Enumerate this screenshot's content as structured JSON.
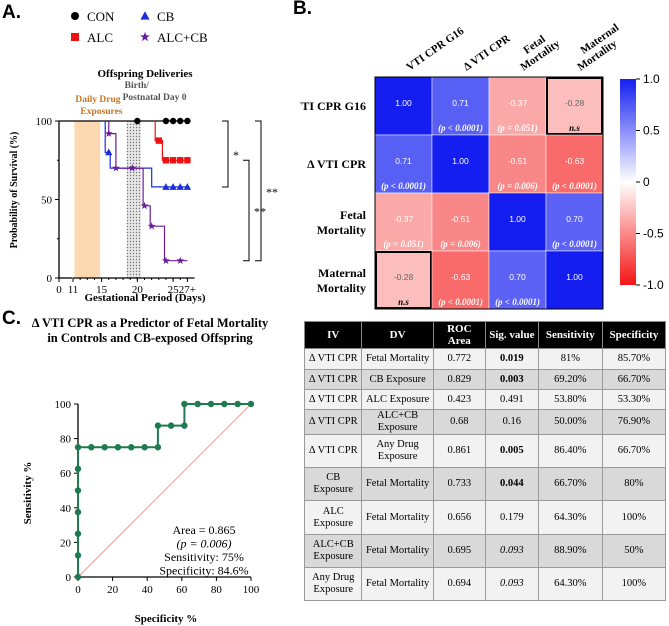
{
  "panels": {
    "a": "A.",
    "b": "B.",
    "c": "C."
  },
  "panel_a": {
    "legend": [
      {
        "name": "CON",
        "color": "#000000",
        "marker": "circle"
      },
      {
        "name": "CB",
        "color": "#1c2fd6",
        "marker": "triangle"
      },
      {
        "name": "ALC",
        "color": "#ee1111",
        "marker": "square"
      },
      {
        "name": "ALC+CB",
        "color": "#6a1b9a",
        "marker": "star"
      }
    ],
    "chart_data": {
      "type": "line",
      "title": "Offspring Deliveries",
      "xlabel": "Gestational Period (Days)",
      "ylabel": "Probability of Survival (%)",
      "x_ticks": [
        "0",
        "11",
        "15",
        "20",
        "25",
        "27+"
      ],
      "y_ticks": [
        "0",
        "50",
        "100"
      ],
      "ylim": [
        0,
        100
      ],
      "shaded_regions": [
        {
          "label": "Daily Drug Exposures",
          "from": 11.2,
          "to": 14.8,
          "color": "#fcd9b0"
        },
        {
          "label": "Birth/ Postnatal Day 0",
          "from": 18.5,
          "to": 20.5,
          "color": "#cfcfcf"
        }
      ],
      "series": [
        {
          "name": "CON",
          "color": "#000000",
          "steps": [
            [
              0,
              100
            ],
            [
              27,
              100
            ]
          ],
          "markers": [
            [
              20,
              100
            ],
            [
              24,
              100
            ],
            [
              25,
              100
            ],
            [
              26,
              100
            ],
            [
              27,
              100
            ]
          ]
        },
        {
          "name": "ALC",
          "color": "#ee1111",
          "steps": [
            [
              22.5,
              100
            ],
            [
              22.5,
              87.5
            ],
            [
              23.5,
              87.5
            ],
            [
              23.5,
              75
            ],
            [
              27,
              75
            ]
          ],
          "markers": [
            [
              23,
              87.5
            ],
            [
              24,
              75
            ],
            [
              25,
              75
            ],
            [
              26,
              75
            ],
            [
              27,
              75
            ]
          ]
        },
        {
          "name": "CB",
          "color": "#1c2fd6",
          "steps": [
            [
              15.5,
              100
            ],
            [
              15.5,
              80
            ],
            [
              16.2,
              80
            ],
            [
              16.2,
              70
            ],
            [
              22,
              70
            ],
            [
              22,
              58
            ],
            [
              27,
              58
            ]
          ],
          "markers": [
            [
              16,
              80
            ],
            [
              24,
              58
            ],
            [
              25,
              58
            ],
            [
              26,
              58
            ],
            [
              27,
              58
            ]
          ]
        },
        {
          "name": "ALC+CB",
          "color": "#6a1b9a",
          "steps": [
            [
              16,
              100
            ],
            [
              16,
              92
            ],
            [
              17,
              92
            ],
            [
              17,
              70
            ],
            [
              20.8,
              70
            ],
            [
              20.8,
              46
            ],
            [
              21.8,
              46
            ],
            [
              21.8,
              33
            ],
            [
              23.8,
              33
            ],
            [
              23.8,
              11
            ],
            [
              27,
              11
            ]
          ],
          "markers": [
            [
              16,
              92
            ],
            [
              17,
              70
            ],
            [
              19.3,
              70
            ],
            [
              21,
              46
            ],
            [
              22,
              33
            ],
            [
              24,
              11
            ],
            [
              26,
              11
            ]
          ]
        }
      ],
      "significance": [
        {
          "label": "*",
          "between": "CON vs CB"
        },
        {
          "label": "**",
          "between": "ALC vs ALC+CB"
        },
        {
          "label": "**",
          "between": "CON vs ALC+CB"
        }
      ]
    }
  },
  "panel_b": {
    "chart_data": {
      "type": "heatmap",
      "rows": [
        "VTI CPR G16",
        "Δ VTI CPR",
        "Fetal Mortality",
        "Maternal Mortality"
      ],
      "columns": [
        "VTI CPR G16",
        "Δ VTI CPR",
        "Fetal Mortality",
        "Maternal Mortality"
      ],
      "values": [
        [
          1.0,
          0.71,
          -0.37,
          -0.28
        ],
        [
          0.71,
          1.0,
          -0.51,
          -0.63
        ],
        [
          -0.37,
          -0.51,
          1.0,
          0.7
        ],
        [
          -0.28,
          -0.63,
          0.7,
          1.0
        ]
      ],
      "value_labels": [
        [
          "1.00",
          "0.71",
          "-0.37",
          "-0.28"
        ],
        [
          "0.71",
          "1.00",
          "-0.51",
          "-0.63"
        ],
        [
          "-0.37",
          "-0.51",
          "1.00",
          "0.70"
        ],
        [
          "-0.28",
          "-0.63",
          "0.70",
          "1.00"
        ]
      ],
      "p_labels": [
        [
          "",
          "(p < 0.0001)",
          "(p = 0.051)",
          "n.s"
        ],
        [
          "(p < 0.0001)",
          "",
          "(p = 0.006)",
          "(p < 0.0001)"
        ],
        [
          "(p = 0.051)",
          "(p = 0.006)",
          "",
          "(p < 0.0001)"
        ],
        [
          "n.s",
          "(p < 0.0001)",
          "(p < 0.0001)",
          ""
        ]
      ],
      "colorbar_ticks": [
        "1.0",
        "0.5",
        "0",
        "-0.5",
        "-1.0"
      ],
      "vrange": [
        -1,
        1
      ]
    }
  },
  "panel_c": {
    "chart_data": {
      "type": "line",
      "title": "Δ VTI CPR as a Predictor of Fetal Mortality in Controls and CB-exposed Offspring",
      "title_lines": [
        "Δ VTI CPR as a Predictor of Fetal Mortality",
        "in Controls and CB-exposed Offspring"
      ],
      "xlabel": "Specificity %",
      "ylabel": "Sensitivity %",
      "x_ticks": [
        "0",
        "20",
        "40",
        "60",
        "80",
        "100"
      ],
      "y_ticks": [
        "0",
        "20",
        "40",
        "60",
        "80",
        "100"
      ],
      "xlim": [
        0,
        100
      ],
      "ylim": [
        0,
        100
      ],
      "roc_points": [
        [
          0,
          0
        ],
        [
          0,
          12.5
        ],
        [
          0,
          25
        ],
        [
          0,
          37.5
        ],
        [
          0,
          50
        ],
        [
          0,
          62.5
        ],
        [
          0,
          75
        ],
        [
          7.7,
          75
        ],
        [
          15.4,
          75
        ],
        [
          23.1,
          75
        ],
        [
          30.8,
          75
        ],
        [
          38.5,
          75
        ],
        [
          46.2,
          75
        ],
        [
          46.2,
          87.5
        ],
        [
          53.8,
          87.5
        ],
        [
          61.5,
          87.5
        ],
        [
          61.5,
          100
        ],
        [
          69.2,
          100
        ],
        [
          76.9,
          100
        ],
        [
          84.6,
          100
        ],
        [
          92.3,
          100
        ],
        [
          100,
          100
        ]
      ],
      "line_color": "#1e7a4f",
      "reference_line_color": "#f0a0a0",
      "annotation": [
        "Area = 0.865",
        "(p = 0.006)",
        "Sensitivity: 75%",
        "Specificity: 84.6%"
      ]
    },
    "table": {
      "headers": [
        "IV",
        "DV",
        "ROC Area",
        "Sig. value",
        "Sensitivity",
        "Specificity"
      ],
      "rows": [
        {
          "iv": "Δ VTI CPR",
          "dv": "Fetal Mortality",
          "roc": "0.772",
          "sig": "0.019",
          "sens": "81%",
          "spec": "85.70%",
          "sig_style": "bold"
        },
        {
          "iv": "Δ VTI CPR",
          "dv": "CB Exposure",
          "roc": "0.829",
          "sig": "0.003",
          "sens": "69.20%",
          "spec": "66.70%",
          "sig_style": "bold"
        },
        {
          "iv": "Δ VTI CPR",
          "dv": "ALC Exposure",
          "roc": "0.423",
          "sig": "0.491",
          "sens": "53.80%",
          "spec": "53.30%",
          "sig_style": "normal"
        },
        {
          "iv": "Δ VTI CPR",
          "dv": "ALC+CB Exposure",
          "roc": "0.68",
          "sig": "0.16",
          "sens": "50.00%",
          "spec": "76.90%",
          "sig_style": "normal"
        },
        {
          "iv": "Δ VTI CPR",
          "dv": "Any Drug Exposure",
          "roc": "0.861",
          "sig": "0.005",
          "sens": "86.40%",
          "spec": "66.70%",
          "sig_style": "bold"
        },
        {
          "iv": "CB Exposure",
          "dv": "Fetal Mortality",
          "roc": "0.733",
          "sig": "0.044",
          "sens": "66.70%",
          "spec": "80%",
          "sig_style": "bold"
        },
        {
          "iv": "ALC Exposure",
          "dv": "Fetal Mortality",
          "roc": "0.656",
          "sig": "0.179",
          "sens": "64.30%",
          "spec": "100%",
          "sig_style": "normal"
        },
        {
          "iv": "ALC+CB Exposure",
          "dv": "Fetal Mortality",
          "roc": "0.695",
          "sig": "0.093",
          "sens": "88.90%",
          "spec": "50%",
          "sig_style": "italic"
        },
        {
          "iv": "Any Drug Exposure",
          "dv": "Fetal Mortality",
          "roc": "0.694",
          "sig": "0.093",
          "sens": "64.30%",
          "spec": "100%",
          "sig_style": "italic"
        }
      ]
    }
  }
}
